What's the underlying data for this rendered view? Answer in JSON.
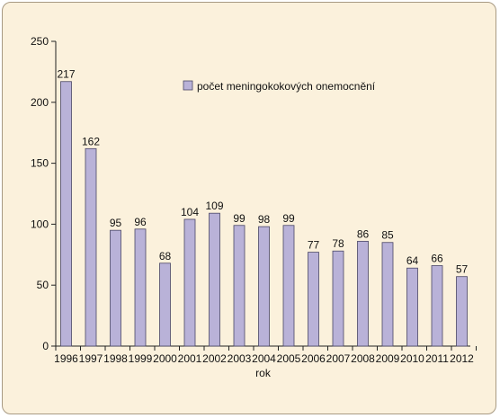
{
  "chart_data": {
    "type": "bar",
    "categories": [
      "1996",
      "1997",
      "1998",
      "1999",
      "2000",
      "2001",
      "2002",
      "2003",
      "2004",
      "2005",
      "2006",
      "2007",
      "2008",
      "2009",
      "2010",
      "2011",
      "2012"
    ],
    "series": [
      {
        "name": "počet meningokokových onemocnění",
        "values": [
          217,
          162,
          95,
          96,
          68,
          104,
          109,
          99,
          98,
          99,
          77,
          78,
          86,
          85,
          64,
          66,
          57
        ],
        "color": "#b9b2d8",
        "stroke": "#4a4766"
      }
    ],
    "xlabel": "rok",
    "ylabel": "",
    "ylim": [
      0,
      250
    ],
    "yticks": [
      0,
      50,
      100,
      150,
      200,
      250
    ],
    "grid": false,
    "legend_position": "top-center",
    "data_labels": true,
    "background": "#fbf1dc",
    "border_color": "#a89a83"
  }
}
